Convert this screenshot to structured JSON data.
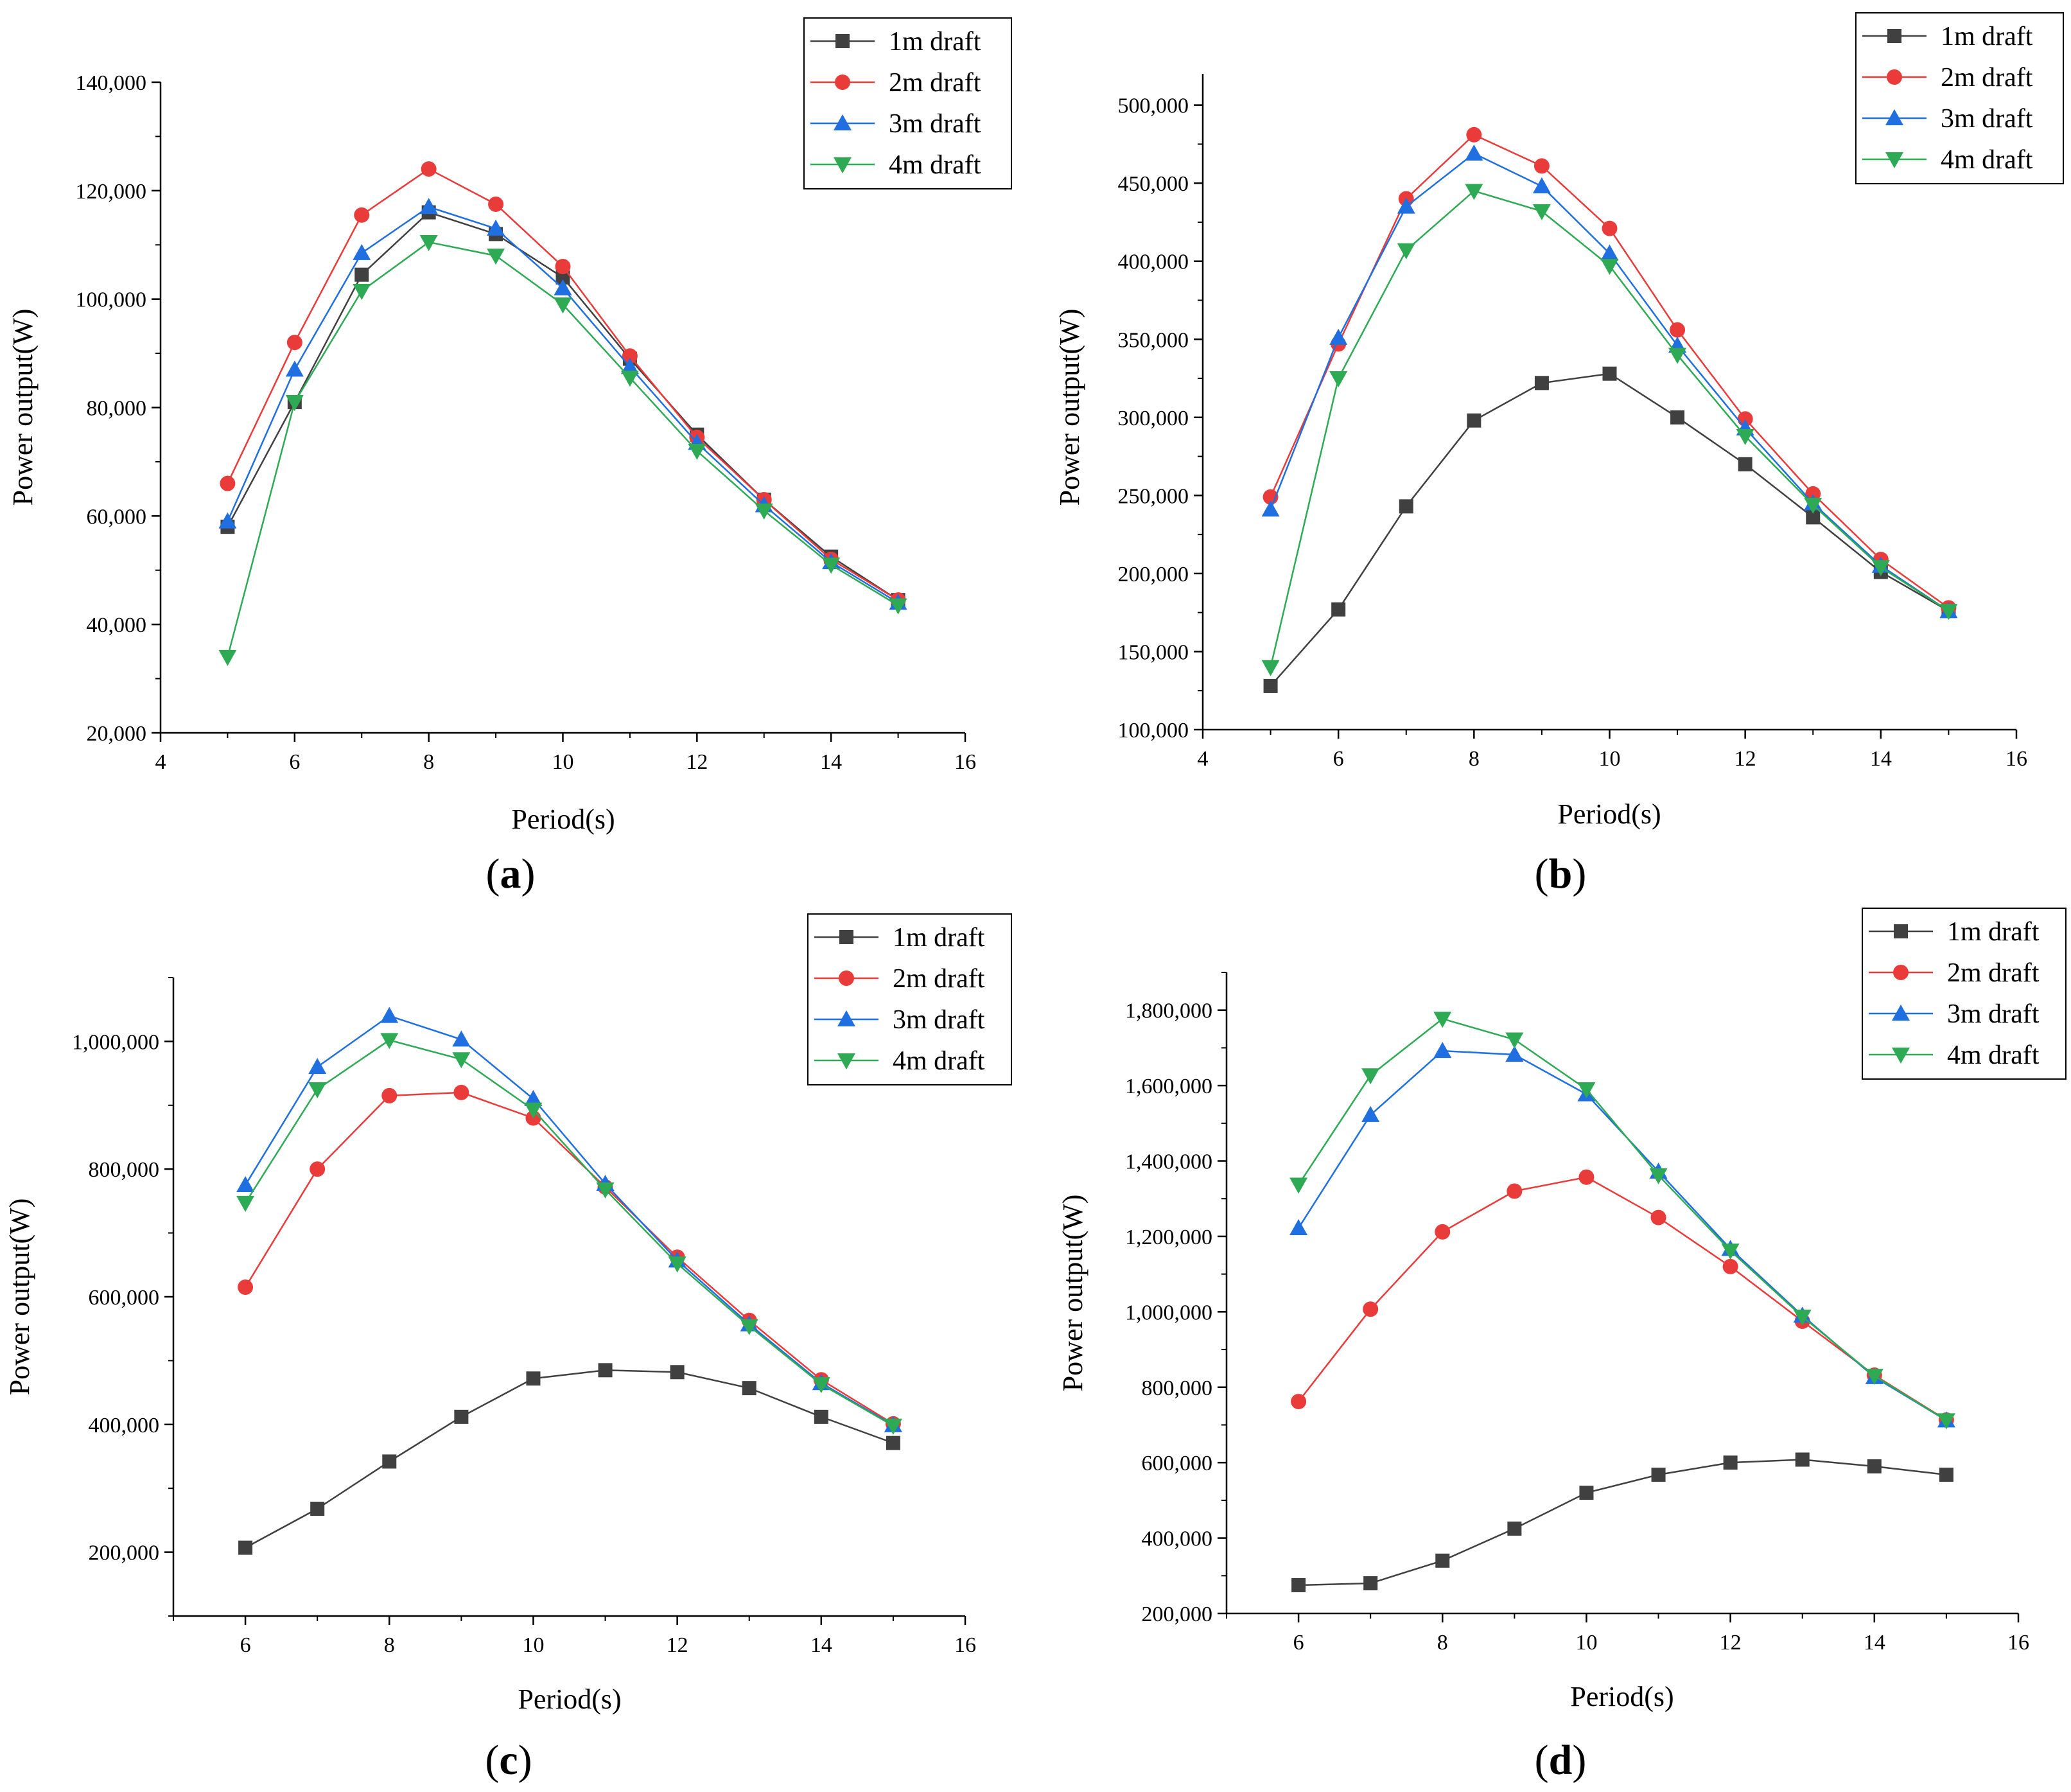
{
  "figure": {
    "series_colors": {
      "1m draft": "#404040",
      "2m draft": "#ea3b3b",
      "3m draft": "#1f6fe0",
      "4m draft": "#2eaa55"
    },
    "series_markers": {
      "1m draft": "square",
      "2m draft": "circle",
      "3m draft": "triangle-up",
      "4m draft": "triangle-down"
    }
  },
  "chart_data": [
    {
      "type": "line",
      "panel": "a",
      "panel_label": {
        "open": "(",
        "letter": "a",
        "close": ")"
      },
      "xlabel": "Period(s)",
      "ylabel": "Power output(W)",
      "xlim": [
        4,
        16
      ],
      "ylim": [
        20000,
        140000
      ],
      "xticks": [
        4,
        6,
        8,
        10,
        12,
        14,
        16
      ],
      "yticks": [
        20000,
        40000,
        60000,
        80000,
        100000,
        120000,
        140000
      ],
      "ytick_labels": [
        "20,000",
        "40,000",
        "60,000",
        "80,000",
        "100,000",
        "120,000",
        "140,000"
      ],
      "legend_position": "top-right",
      "series": [
        {
          "name": "1m draft",
          "x": [
            5,
            6,
            7,
            8,
            9,
            10,
            11,
            12,
            13,
            14,
            15
          ],
          "values": [
            58000,
            81000,
            104500,
            116000,
            112000,
            104000,
            89000,
            75000,
            63000,
            52500,
            44500
          ]
        },
        {
          "name": "2m draft",
          "x": [
            5,
            6,
            7,
            8,
            9,
            10,
            11,
            12,
            13,
            14,
            15
          ],
          "values": [
            66000,
            92000,
            115500,
            124000,
            117500,
            106000,
            89500,
            74500,
            63000,
            52000,
            44500
          ]
        },
        {
          "name": "3m draft",
          "x": [
            5,
            6,
            7,
            8,
            9,
            10,
            11,
            12,
            13,
            14,
            15
          ],
          "values": [
            59000,
            87000,
            108500,
            117000,
            113000,
            102000,
            87500,
            73500,
            62000,
            51500,
            44000
          ]
        },
        {
          "name": "4m draft",
          "x": [
            5,
            6,
            7,
            8,
            9,
            10,
            11,
            12,
            13,
            14,
            15
          ],
          "values": [
            34000,
            81000,
            101500,
            110500,
            108000,
            99000,
            85500,
            72000,
            61000,
            51000,
            43500
          ]
        }
      ]
    },
    {
      "type": "line",
      "panel": "b",
      "panel_label": {
        "open": "(",
        "letter": "b",
        "close": ")"
      },
      "xlabel": "Period(s)",
      "ylabel": "Power output(W)",
      "xlim": [
        4,
        16
      ],
      "ylim": [
        100000,
        520000
      ],
      "xticks": [
        4,
        6,
        8,
        10,
        12,
        14,
        16
      ],
      "yticks": [
        100000,
        150000,
        200000,
        250000,
        300000,
        350000,
        400000,
        450000,
        500000
      ],
      "ytick_labels": [
        "100,000",
        "150,000",
        "200,000",
        "250,000",
        "300,000",
        "350,000",
        "400,000",
        "450,000",
        "500,000"
      ],
      "legend_position": "top-right",
      "series": [
        {
          "name": "1m draft",
          "x": [
            5,
            6,
            7,
            8,
            9,
            10,
            11,
            12,
            13,
            14,
            15
          ],
          "values": [
            128000,
            177000,
            243000,
            298000,
            322000,
            328000,
            300000,
            270000,
            236000,
            201000,
            176000
          ]
        },
        {
          "name": "2m draft",
          "x": [
            5,
            6,
            7,
            8,
            9,
            10,
            11,
            12,
            13,
            14,
            15
          ],
          "values": [
            249000,
            347000,
            440000,
            481000,
            461000,
            421000,
            356000,
            299000,
            251000,
            209000,
            178000
          ]
        },
        {
          "name": "3m draft",
          "x": [
            5,
            6,
            7,
            8,
            9,
            10,
            11,
            12,
            13,
            14,
            15
          ],
          "values": [
            241000,
            351000,
            435000,
            469000,
            448000,
            405000,
            346000,
            293000,
            245000,
            205000,
            176000
          ]
        },
        {
          "name": "4m draft",
          "x": [
            5,
            6,
            7,
            8,
            9,
            10,
            11,
            12,
            13,
            14,
            15
          ],
          "values": [
            140000,
            325000,
            407000,
            445000,
            432000,
            397000,
            340000,
            288000,
            244000,
            204000,
            176000
          ]
        }
      ]
    },
    {
      "type": "line",
      "panel": "c",
      "panel_label": {
        "open": "(",
        "letter": "c",
        "close": ")"
      },
      "xlabel": "Period(s)",
      "ylabel": "Power output(W)",
      "xlim": [
        5,
        16
      ],
      "ylim": [
        100000,
        1100000
      ],
      "xticks": [
        6,
        8,
        10,
        12,
        14,
        16
      ],
      "yticks": [
        200000,
        400000,
        600000,
        800000,
        1000000
      ],
      "ytick_labels": [
        "200,000",
        "400,000",
        "600,000",
        "800,000",
        "1,000,000"
      ],
      "legend_position": "top-right",
      "series": [
        {
          "name": "1m draft",
          "x": [
            6,
            7,
            8,
            9,
            10,
            11,
            12,
            13,
            14,
            15
          ],
          "values": [
            207000,
            268000,
            342000,
            412000,
            472000,
            485000,
            482000,
            457000,
            412000,
            371000
          ]
        },
        {
          "name": "2m draft",
          "x": [
            6,
            7,
            8,
            9,
            10,
            11,
            12,
            13,
            14,
            15
          ],
          "values": [
            615000,
            800000,
            915000,
            920000,
            880000,
            772000,
            662000,
            563000,
            470000,
            401000
          ]
        },
        {
          "name": "3m draft",
          "x": [
            6,
            7,
            8,
            9,
            10,
            11,
            12,
            13,
            14,
            15
          ],
          "values": [
            775000,
            960000,
            1040000,
            1003000,
            910000,
            777000,
            657000,
            557000,
            465000,
            399000
          ]
        },
        {
          "name": "4m draft",
          "x": [
            6,
            7,
            8,
            9,
            10,
            11,
            12,
            13,
            14,
            15
          ],
          "values": [
            747000,
            925000,
            1002000,
            972000,
            893000,
            768000,
            652000,
            554000,
            463000,
            398000
          ]
        }
      ]
    },
    {
      "type": "line",
      "panel": "d",
      "panel_label": {
        "open": "(",
        "letter": "d",
        "close": ")"
      },
      "xlabel": "Period(s)",
      "ylabel": "Power output(W)",
      "xlim": [
        5,
        16
      ],
      "ylim": [
        200000,
        1900000
      ],
      "xticks": [
        6,
        8,
        10,
        12,
        14,
        16
      ],
      "yticks": [
        200000,
        400000,
        600000,
        800000,
        1000000,
        1200000,
        1400000,
        1600000,
        1800000
      ],
      "ytick_labels": [
        "200,000",
        "400,000",
        "600,000",
        "800,000",
        "1,000,000",
        "1,200,000",
        "1,400,000",
        "1,600,000",
        "1,800,000"
      ],
      "legend_position": "top-right",
      "series": [
        {
          "name": "1m draft",
          "x": [
            6,
            7,
            8,
            9,
            10,
            11,
            12,
            13,
            14,
            15
          ],
          "values": [
            275000,
            280000,
            340000,
            425000,
            520000,
            568000,
            600000,
            608000,
            590000,
            568000
          ]
        },
        {
          "name": "2m draft",
          "x": [
            6,
            7,
            8,
            9,
            10,
            11,
            12,
            13,
            14,
            15
          ],
          "values": [
            762000,
            1007000,
            1212000,
            1320000,
            1357000,
            1250000,
            1120000,
            975000,
            832000,
            713000
          ]
        },
        {
          "name": "3m draft",
          "x": [
            6,
            7,
            8,
            9,
            10,
            11,
            12,
            13,
            14,
            15
          ],
          "values": [
            1222000,
            1522000,
            1692000,
            1682000,
            1577000,
            1372000,
            1167000,
            990000,
            827000,
            712000
          ]
        },
        {
          "name": "4m draft",
          "x": [
            6,
            7,
            8,
            9,
            10,
            11,
            12,
            13,
            14,
            15
          ],
          "values": [
            1337000,
            1627000,
            1777000,
            1722000,
            1590000,
            1362000,
            1162000,
            987000,
            830000,
            712000
          ]
        }
      ]
    }
  ]
}
